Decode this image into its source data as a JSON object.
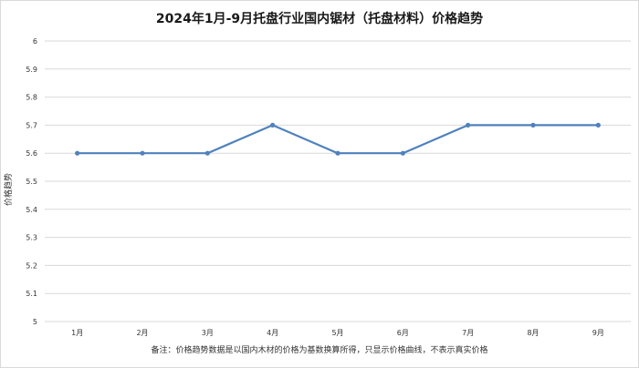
{
  "chart_data": {
    "type": "line",
    "title": "2024年1月-9月托盘行业国内锯材（托盘材料）价格趋势",
    "ylabel": "价格趋势",
    "xlabel": "",
    "categories": [
      "1月",
      "2月",
      "3月",
      "4月",
      "5月",
      "6月",
      "7月",
      "8月",
      "9月"
    ],
    "series": [
      {
        "values": [
          5.6,
          5.6,
          5.6,
          5.7,
          5.6,
          5.6,
          5.7,
          5.7,
          5.7
        ]
      }
    ],
    "ylim": [
      5,
      6
    ],
    "yticks": [
      "5",
      "5.1",
      "5.2",
      "5.3",
      "5.4",
      "5.5",
      "5.6",
      "5.7",
      "5.8",
      "5.9",
      "6"
    ],
    "grid": true,
    "legend": "none",
    "line_color": "#4f81bd"
  },
  "footnote": "备注：价格趋势数据是以国内木材的价格为基数换算所得，只显示价格曲线，不表示真实价格"
}
